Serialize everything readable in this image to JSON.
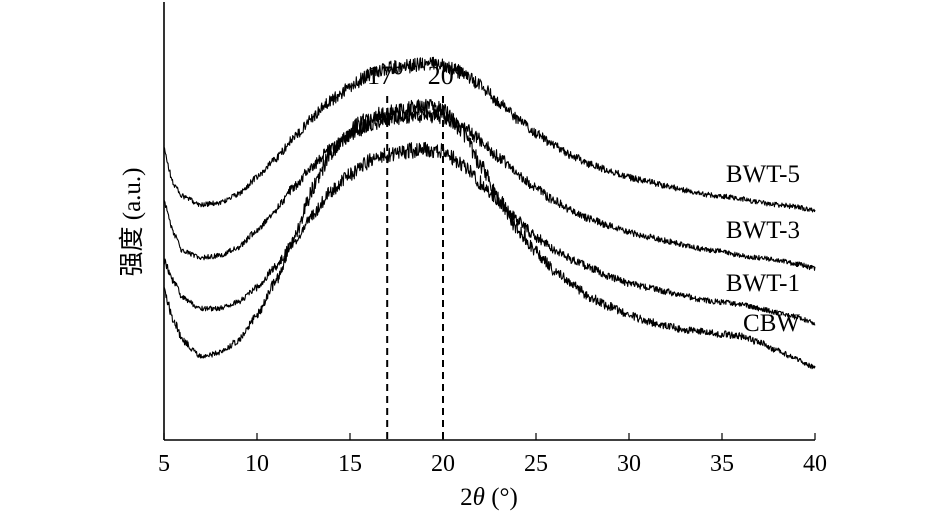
{
  "chart_data": {
    "type": "line",
    "xlabel_prefix": "2",
    "xlabel_theta": "θ",
    "xlabel_suffix": " (°)",
    "ylabel": "强度 (a.u.)",
    "xlim": [
      5,
      40
    ],
    "xticks": [
      "5",
      "10",
      "15",
      "20",
      "25",
      "30",
      "35",
      "40"
    ],
    "yticks_shown": false,
    "grid": false,
    "annotations": [
      {
        "x": 17,
        "label": "17°"
      },
      {
        "x": 20,
        "label": "20°"
      }
    ],
    "series": [
      {
        "name": "BWT-5",
        "offset": 3,
        "points": [
          [
            5,
            0.68
          ],
          [
            5.5,
            0.52
          ],
          [
            6,
            0.46
          ],
          [
            7,
            0.42
          ],
          [
            8,
            0.43
          ],
          [
            9,
            0.47
          ],
          [
            10,
            0.55
          ],
          [
            11,
            0.64
          ],
          [
            12,
            0.74
          ],
          [
            13,
            0.84
          ],
          [
            14,
            0.92
          ],
          [
            15,
            0.98
          ],
          [
            16,
            1.04
          ],
          [
            17,
            1.07
          ],
          [
            18,
            1.08
          ],
          [
            19,
            1.09
          ],
          [
            20,
            1.09
          ],
          [
            21,
            1.05
          ],
          [
            22,
            0.99
          ],
          [
            23,
            0.91
          ],
          [
            24,
            0.83
          ],
          [
            25,
            0.76
          ],
          [
            26,
            0.7
          ],
          [
            27,
            0.65
          ],
          [
            28,
            0.61
          ],
          [
            29,
            0.58
          ],
          [
            30,
            0.55
          ],
          [
            31,
            0.53
          ],
          [
            32,
            0.51
          ],
          [
            33,
            0.49
          ],
          [
            34,
            0.47
          ],
          [
            35,
            0.46
          ],
          [
            36,
            0.45
          ],
          [
            37,
            0.43
          ],
          [
            38,
            0.42
          ],
          [
            39,
            0.41
          ],
          [
            40,
            0.39
          ]
        ]
      },
      {
        "name": "BWT-3",
        "offset": 2,
        "points": [
          [
            5,
            0.7
          ],
          [
            5.5,
            0.55
          ],
          [
            6,
            0.46
          ],
          [
            7,
            0.43
          ],
          [
            8,
            0.44
          ],
          [
            9,
            0.48
          ],
          [
            10,
            0.56
          ],
          [
            11,
            0.66
          ],
          [
            12,
            0.77
          ],
          [
            13,
            0.87
          ],
          [
            14,
            0.95
          ],
          [
            15,
            1.01
          ],
          [
            16,
            1.06
          ],
          [
            17,
            1.09
          ],
          [
            18,
            1.1
          ],
          [
            19,
            1.11
          ],
          [
            20,
            1.1
          ],
          [
            21,
            1.06
          ],
          [
            22,
            0.99
          ],
          [
            23,
            0.91
          ],
          [
            24,
            0.83
          ],
          [
            25,
            0.76
          ],
          [
            26,
            0.7
          ],
          [
            27,
            0.65
          ],
          [
            28,
            0.61
          ],
          [
            29,
            0.58
          ],
          [
            30,
            0.55
          ],
          [
            31,
            0.53
          ],
          [
            32,
            0.51
          ],
          [
            33,
            0.49
          ],
          [
            34,
            0.47
          ],
          [
            35,
            0.46
          ],
          [
            36,
            0.44
          ],
          [
            37,
            0.43
          ],
          [
            38,
            0.42
          ],
          [
            39,
            0.4
          ],
          [
            40,
            0.38
          ]
        ]
      },
      {
        "name": "BWT-1",
        "offset": 1,
        "points": [
          [
            5,
            0.68
          ],
          [
            5.5,
            0.58
          ],
          [
            6,
            0.5
          ],
          [
            7,
            0.45
          ],
          [
            8,
            0.45
          ],
          [
            9,
            0.48
          ],
          [
            10,
            0.55
          ],
          [
            11,
            0.65
          ],
          [
            12,
            0.77
          ],
          [
            13,
            0.9
          ],
          [
            14,
            1.01
          ],
          [
            15,
            1.09
          ],
          [
            16,
            1.15
          ],
          [
            17,
            1.18
          ],
          [
            18,
            1.2
          ],
          [
            19,
            1.21
          ],
          [
            20,
            1.2
          ],
          [
            21,
            1.14
          ],
          [
            22,
            1.05
          ],
          [
            23,
            0.96
          ],
          [
            24,
            0.87
          ],
          [
            25,
            0.79
          ],
          [
            26,
            0.73
          ],
          [
            27,
            0.68
          ],
          [
            28,
            0.64
          ],
          [
            29,
            0.6
          ],
          [
            30,
            0.57
          ],
          [
            31,
            0.55
          ],
          [
            32,
            0.53
          ],
          [
            33,
            0.51
          ],
          [
            34,
            0.49
          ],
          [
            35,
            0.48
          ],
          [
            36,
            0.47
          ],
          [
            37,
            0.45
          ],
          [
            38,
            0.43
          ],
          [
            39,
            0.41
          ],
          [
            40,
            0.38
          ]
        ]
      },
      {
        "name": "CBW",
        "offset": 0,
        "points": [
          [
            5,
            0.8
          ],
          [
            5.5,
            0.66
          ],
          [
            6,
            0.56
          ],
          [
            7,
            0.48
          ],
          [
            8,
            0.5
          ],
          [
            9,
            0.56
          ],
          [
            10,
            0.68
          ],
          [
            11,
            0.84
          ],
          [
            12,
            1.05
          ],
          [
            13,
            1.28
          ],
          [
            14,
            1.46
          ],
          [
            15,
            1.56
          ],
          [
            16,
            1.62
          ],
          [
            17,
            1.64
          ],
          [
            18,
            1.66
          ],
          [
            19,
            1.67
          ],
          [
            20,
            1.66
          ],
          [
            21,
            1.56
          ],
          [
            22,
            1.4
          ],
          [
            23,
            1.23
          ],
          [
            24,
            1.09
          ],
          [
            25,
            0.98
          ],
          [
            26,
            0.89
          ],
          [
            27,
            0.82
          ],
          [
            28,
            0.76
          ],
          [
            29,
            0.72
          ],
          [
            30,
            0.68
          ],
          [
            31,
            0.65
          ],
          [
            32,
            0.63
          ],
          [
            33,
            0.61
          ],
          [
            34,
            0.6
          ],
          [
            35,
            0.59
          ],
          [
            36,
            0.58
          ],
          [
            37,
            0.55
          ],
          [
            38,
            0.51
          ],
          [
            39,
            0.47
          ],
          [
            40,
            0.43
          ]
        ]
      }
    ]
  }
}
